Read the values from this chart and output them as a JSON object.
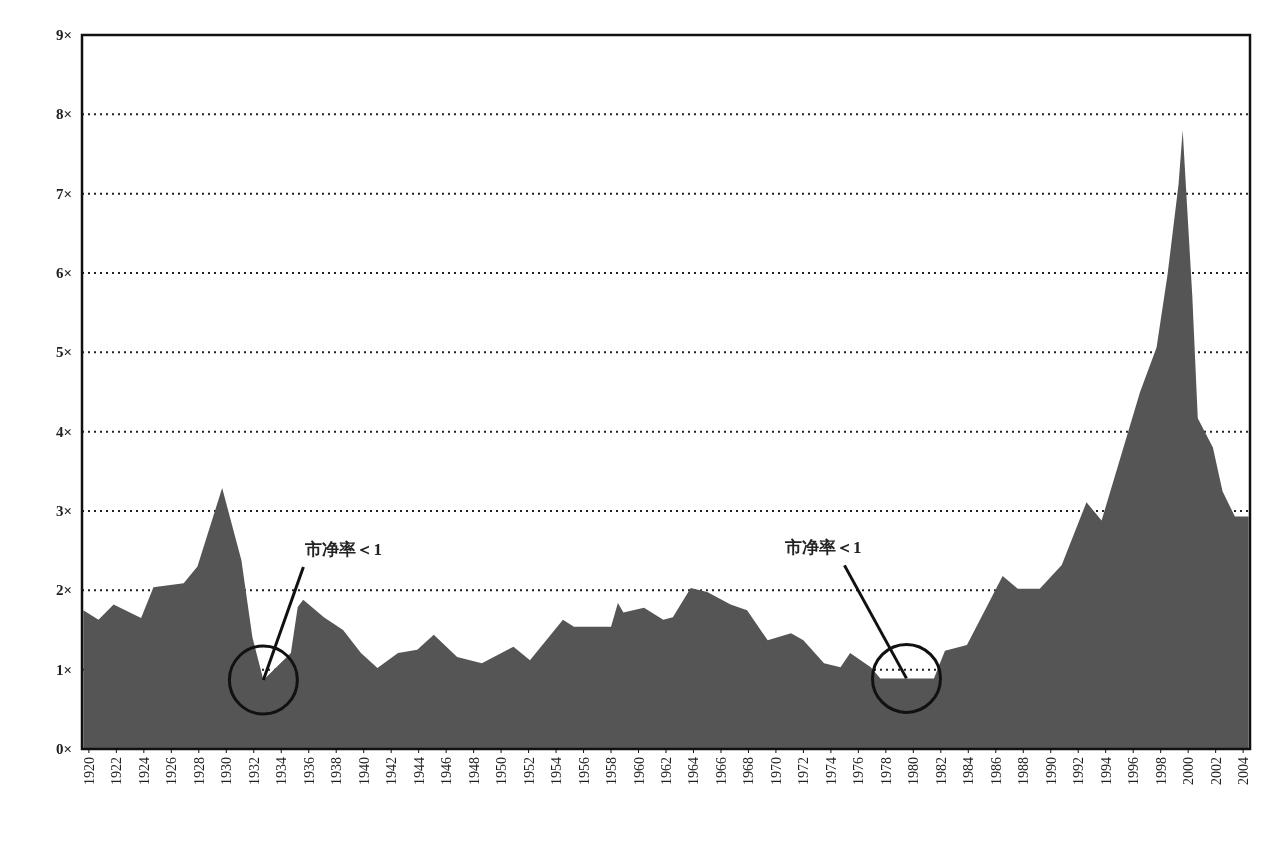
{
  "chart_data": {
    "type": "area",
    "color": "#555555",
    "x": [
      1919.6,
      1920.7,
      1921.8,
      1923.8,
      1924.7,
      1926.9,
      1927.9,
      1929.7,
      1931.1,
      1931.9,
      1932.7,
      1934.7,
      1935.2,
      1935.6,
      1937.1,
      1938.5,
      1939.8,
      1941.0,
      1942.5,
      1943.9,
      1945.1,
      1946.8,
      1948.6,
      1950.9,
      1952.1,
      1954.5,
      1955.3,
      1958.0,
      1958.5,
      1958.9,
      1960.4,
      1961.8,
      1962.5,
      1963.8,
      1965.0,
      1966.7,
      1967.9,
      1969.4,
      1971.1,
      1972.0,
      1973.5,
      1974.7,
      1975.4,
      1976.9,
      1977.6,
      1981.5,
      1982.3,
      1983.9,
      1986.5,
      1987.6,
      1989.2,
      1990.8,
      1992.6,
      1993.7,
      1996.5,
      1997.7,
      1998.5,
      1999.3,
      1999.6,
      2000.3,
      2000.7,
      2001.8,
      2002.5,
      2003.4,
      2004.4
    ],
    "values": [
      1.75,
      1.63,
      1.82,
      1.65,
      2.04,
      2.09,
      2.3,
      3.29,
      2.38,
      1.41,
      0.87,
      1.21,
      1.79,
      1.88,
      1.66,
      1.5,
      1.21,
      1.02,
      1.21,
      1.25,
      1.44,
      1.16,
      1.08,
      1.29,
      1.12,
      1.63,
      1.54,
      1.54,
      1.84,
      1.72,
      1.78,
      1.63,
      1.66,
      2.03,
      1.98,
      1.82,
      1.75,
      1.37,
      1.46,
      1.37,
      1.08,
      1.03,
      1.21,
      1.03,
      0.89,
      0.89,
      1.24,
      1.31,
      2.18,
      2.02,
      2.02,
      2.32,
      3.11,
      2.88,
      4.5,
      5.06,
      5.98,
      7.12,
      7.8,
      5.71,
      4.17,
      3.8,
      3.25,
      2.93,
      2.93
    ],
    "xlim": [
      1919.5,
      2004.5
    ],
    "xticks": [
      1920,
      1922,
      1924,
      1926,
      1928,
      1930,
      1932,
      1934,
      1936,
      1938,
      1940,
      1942,
      1944,
      1946,
      1948,
      1950,
      1952,
      1954,
      1956,
      1958,
      1960,
      1962,
      1964,
      1966,
      1968,
      1970,
      1972,
      1974,
      1976,
      1978,
      1980,
      1982,
      1984,
      1986,
      1988,
      1990,
      1992,
      1994,
      1996,
      1998,
      2000,
      2002,
      2004
    ],
    "ylim": [
      0,
      9
    ],
    "yticks": [
      {
        "value": 0,
        "label": "0×"
      },
      {
        "value": 1,
        "label": "1×"
      },
      {
        "value": 2,
        "label": "2×"
      },
      {
        "value": 3,
        "label": "3×"
      },
      {
        "value": 4,
        "label": "4×"
      },
      {
        "value": 5,
        "label": "5×"
      },
      {
        "value": 6,
        "label": "6×"
      },
      {
        "value": 7,
        "label": "7×"
      },
      {
        "value": 8,
        "label": "8×"
      },
      {
        "value": 9,
        "label": "9×"
      }
    ],
    "grid": "y",
    "annotations": [
      {
        "text": "市净率＜1",
        "x": 1932.7,
        "y": 0.87
      },
      {
        "text": "市净率＜1",
        "x": 1979.5,
        "y": 0.89
      }
    ]
  }
}
